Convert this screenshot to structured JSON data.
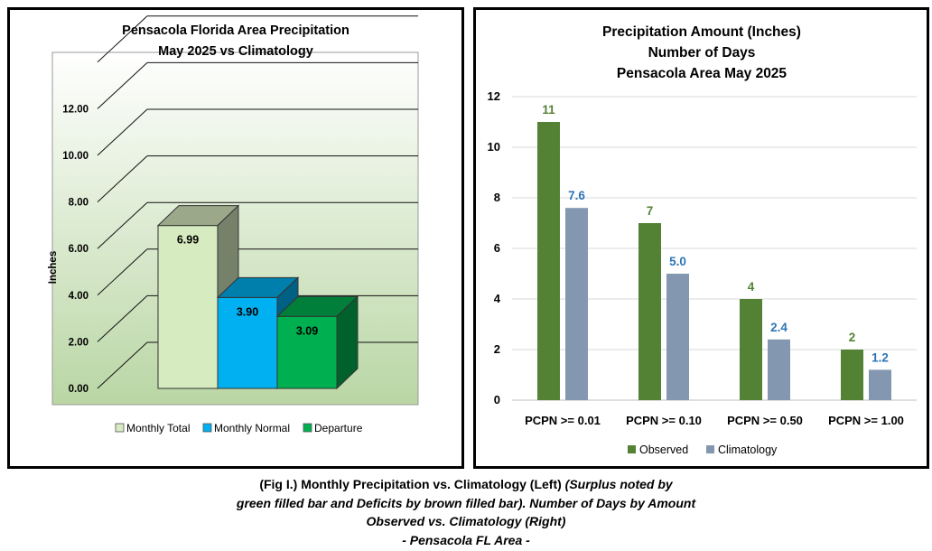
{
  "colors": {
    "left_bg_top": "#ffffff",
    "left_bg_bottom": "#b9d6a4",
    "monthly_total": "#d7ebc0",
    "monthly_normal": "#00b0f0",
    "departure": "#00b050",
    "observed": "#548235",
    "climatology": "#8497b0",
    "observed_label": "#548235",
    "climatology_label": "#2e75b6"
  },
  "chart_data": [
    {
      "type": "bar",
      "style": "3d-clustered",
      "title": "Pensacola Florida Area Precipitation",
      "subtitle": "May 2025 vs Climatology",
      "ylabel": "Inches",
      "ylim": [
        0,
        14
      ],
      "yticks": [
        "0.00",
        "2.00",
        "4.00",
        "6.00",
        "8.00",
        "10.00",
        "12.00"
      ],
      "grid": true,
      "legend_position": "bottom",
      "series": [
        {
          "name": "Monthly Total",
          "value": 6.99,
          "label": "6.99"
        },
        {
          "name": "Monthly Normal",
          "value": 3.9,
          "label": "3.90"
        },
        {
          "name": "Departure",
          "value": 3.09,
          "label": "3.09"
        }
      ]
    },
    {
      "type": "bar",
      "title_lines": [
        "Precipitation Amount (Inches)",
        "Number of Days",
        "Pensacola Area May 2025"
      ],
      "categories": [
        "PCPN >= 0.01",
        "PCPN >= 0.10",
        "PCPN >= 0.50",
        "PCPN >= 1.00"
      ],
      "ylim": [
        0,
        12
      ],
      "yticks": [
        "0",
        "2",
        "4",
        "6",
        "8",
        "10",
        "12"
      ],
      "grid": true,
      "legend_position": "bottom",
      "series": [
        {
          "name": "Observed",
          "values": [
            11,
            7,
            4,
            2
          ],
          "labels": [
            "11",
            "7",
            "4",
            "2"
          ]
        },
        {
          "name": "Climatology",
          "values": [
            7.6,
            5.0,
            2.4,
            1.2
          ],
          "labels": [
            "7.6",
            "5.0",
            "2.4",
            "1.2"
          ]
        }
      ]
    }
  ],
  "caption": {
    "line1_bold": "(Fig I.) Monthly Precipitation vs. Climatology (Left)",
    "line1_italic": "(Surplus noted by",
    "line2": "green filled bar and Deficits by brown filled bar). Number of Days by Amount",
    "line3": "Observed vs. Climatology (Right)",
    "line4": "- Pensacola FL Area -"
  }
}
